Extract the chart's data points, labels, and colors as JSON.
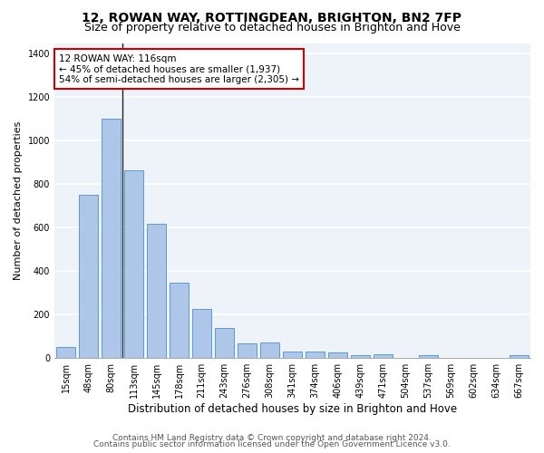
{
  "title1": "12, ROWAN WAY, ROTTINGDEAN, BRIGHTON, BN2 7FP",
  "title2": "Size of property relative to detached houses in Brighton and Hove",
  "xlabel": "Distribution of detached houses by size in Brighton and Hove",
  "ylabel": "Number of detached properties",
  "categories": [
    "15sqm",
    "48sqm",
    "80sqm",
    "113sqm",
    "145sqm",
    "178sqm",
    "211sqm",
    "243sqm",
    "276sqm",
    "308sqm",
    "341sqm",
    "374sqm",
    "406sqm",
    "439sqm",
    "471sqm",
    "504sqm",
    "537sqm",
    "569sqm",
    "602sqm",
    "634sqm",
    "667sqm"
  ],
  "values": [
    50,
    750,
    1100,
    865,
    615,
    345,
    225,
    135,
    65,
    70,
    30,
    30,
    22,
    12,
    17,
    0,
    12,
    0,
    0,
    0,
    12
  ],
  "bar_color": "#aec6e8",
  "bar_edge_color": "#5b9bd5",
  "annotation_line1": "12 ROWAN WAY: 116sqm",
  "annotation_line2": "← 45% of detached houses are smaller (1,937)",
  "annotation_line3": "54% of semi-detached houses are larger (2,305) →",
  "vline_color": "#222222",
  "vline_x": 2.5,
  "box_edge_color": "#cc0000",
  "ylim": [
    0,
    1450
  ],
  "yticks": [
    0,
    200,
    400,
    600,
    800,
    1000,
    1200,
    1400
  ],
  "background_color": "#eef2f9",
  "grid_color": "#ffffff",
  "footer1": "Contains HM Land Registry data © Crown copyright and database right 2024.",
  "footer2": "Contains public sector information licensed under the Open Government Licence v3.0.",
  "title1_fontsize": 10,
  "title2_fontsize": 9,
  "xlabel_fontsize": 8.5,
  "ylabel_fontsize": 8,
  "tick_fontsize": 7,
  "footer_fontsize": 6.5,
  "annotation_fontsize": 7.5
}
